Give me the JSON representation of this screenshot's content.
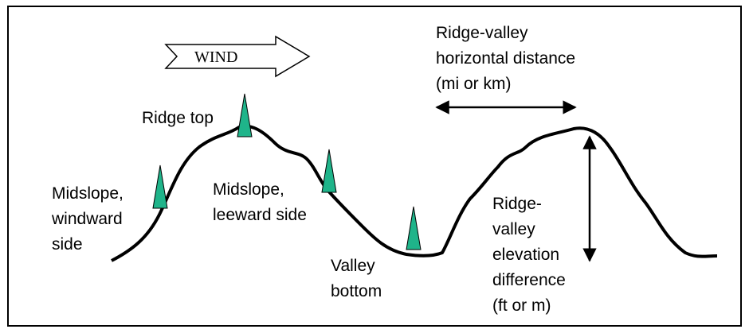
{
  "wind_label": "WIND",
  "labels": [
    {
      "lines": [
        "Ridge-valley",
        "horizontal distance",
        "(mi or km)"
      ]
    },
    {
      "lines": [
        "Ridge top"
      ]
    },
    {
      "lines": [
        "Midslope,",
        "windward",
        "side"
      ]
    },
    {
      "lines": [
        "Midslope,",
        "leeward side"
      ]
    },
    {
      "lines": [
        "Valley",
        "bottom"
      ]
    },
    {
      "lines": [
        "Ridge-",
        "valley",
        "elevation",
        "difference",
        "(ft or m)"
      ]
    }
  ]
}
